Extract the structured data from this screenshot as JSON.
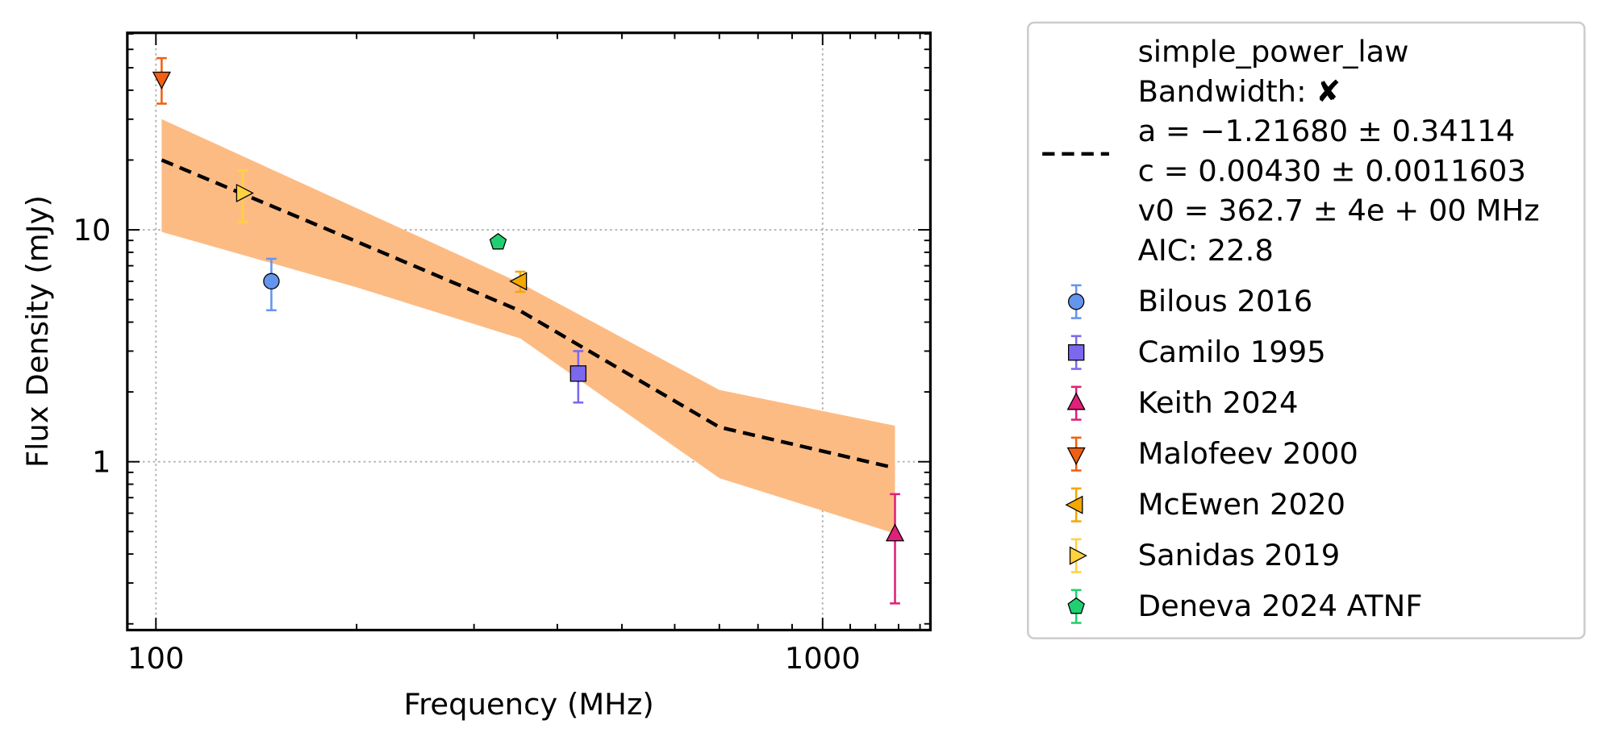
{
  "chart_data": {
    "type": "scatter",
    "x_label": "Frequency (MHz)",
    "y_label": "Flux Density (mJy)",
    "xscale": "log",
    "yscale": "log",
    "xlim": [
      90.6,
      1451
    ],
    "ylim": [
      0.188,
      70.7
    ],
    "xticks": [
      100,
      1000
    ],
    "yticks": [
      1,
      10
    ],
    "x_minor_ticks": [
      200,
      300,
      400,
      500,
      600,
      700,
      800,
      900,
      1100,
      1200,
      1300,
      1400
    ],
    "y_minor_ticks": [
      0.2,
      0.3,
      0.4,
      0.5,
      0.6,
      0.7,
      0.8,
      0.9,
      2,
      3,
      4,
      5,
      6,
      7,
      8,
      9,
      20,
      30,
      40,
      50,
      60,
      70
    ],
    "grid": true,
    "legend": "outside-right",
    "fit": {
      "name": [
        "simple_power_law",
        "Bandwidth: ✘",
        "a = −1.21680 ± 0.34114",
        "c = 0.00430 ± 0.0011603",
        "v0 = 362.7 ± 4e + 00 MHz",
        "AIC: 22.8"
      ],
      "color": "#000000",
      "band_color": "#fdbb84",
      "x": [
        102,
        200,
        352,
        700,
        1284
      ],
      "values": [
        20,
        8.9,
        4.47,
        1.41,
        0.94
      ],
      "upper": [
        30,
        12.4,
        5.9,
        2.04,
        1.43
      ],
      "lower": [
        9.8,
        5.65,
        3.4,
        0.85,
        0.49
      ]
    },
    "series": [
      {
        "name": "Bilous 2016",
        "color": "#6495ed",
        "marker": "circle",
        "x": [
          149
        ],
        "values": [
          6.0
        ],
        "errors": [
          1.5
        ]
      },
      {
        "name": "Camilo 1995",
        "color": "#7b68ee",
        "marker": "square",
        "x": [
          430
        ],
        "values": [
          2.4
        ],
        "errors": [
          0.6
        ]
      },
      {
        "name": "Keith 2024",
        "color": "#e0207a",
        "marker": "triangle-up",
        "x": [
          1284
        ],
        "values": [
          0.485
        ],
        "errors": [
          0.24
        ]
      },
      {
        "name": "Malofeev 2000",
        "color": "#f06010",
        "marker": "triangle-down",
        "x": [
          102
        ],
        "values": [
          45
        ],
        "errors": [
          10
        ]
      },
      {
        "name": "McEwen 2020",
        "color": "#f5a800",
        "marker": "triangle-left",
        "x": [
          352
        ],
        "values": [
          6.0
        ],
        "errors": [
          0.6
        ]
      },
      {
        "name": "Sanidas 2019",
        "color": "#ffd23f",
        "marker": "triangle-right",
        "x": [
          135
        ],
        "values": [
          14.4
        ],
        "errors": [
          3.6
        ]
      },
      {
        "name": "Deneva 2024 ATNF",
        "color": "#20d070",
        "marker": "pentagon",
        "x": [
          326
        ],
        "values": [
          8.85
        ],
        "errors": [
          0.2
        ]
      }
    ]
  }
}
